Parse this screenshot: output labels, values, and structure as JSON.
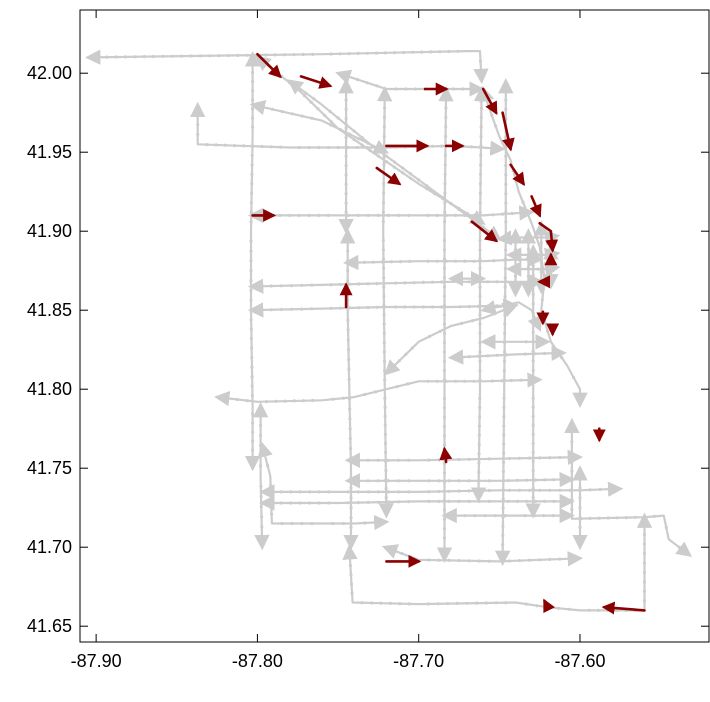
{
  "chart_data": {
    "type": "map-network",
    "title": "",
    "xlabel": "",
    "ylabel": "",
    "xlim": [
      -87.91,
      -87.52
    ],
    "ylim": [
      41.64,
      42.04
    ],
    "grid": false,
    "x_ticks": [
      {
        "value": -87.9,
        "label": "-87.90"
      },
      {
        "value": -87.8,
        "label": "-87.80"
      },
      {
        "value": -87.7,
        "label": "-87.70"
      },
      {
        "value": -87.6,
        "label": "-87.60"
      }
    ],
    "y_ticks": [
      {
        "value": 42.0,
        "label": "42.00"
      },
      {
        "value": 41.95,
        "label": "41.95"
      },
      {
        "value": 41.9,
        "label": "41.90"
      },
      {
        "value": 41.85,
        "label": "41.85"
      },
      {
        "value": 41.8,
        "label": "41.80"
      },
      {
        "value": 41.75,
        "label": "41.75"
      },
      {
        "value": 41.7,
        "label": "41.70"
      },
      {
        "value": 41.65,
        "label": "41.65"
      }
    ],
    "colors": {
      "network": "#cccccc",
      "highlight": "#8b0000",
      "axes": "#000000"
    },
    "network_lines": [
      [
        [
          -87.905,
          42.01
        ],
        [
          -87.76,
          42.012
        ],
        [
          -87.67,
          42.014
        ],
        [
          -87.662,
          42.014
        ],
        [
          -87.661,
          41.995
        ]
      ],
      [
        [
          -87.803,
          42.012
        ],
        [
          -87.803,
          41.96
        ],
        [
          -87.804,
          41.9
        ],
        [
          -87.804,
          41.85
        ],
        [
          -87.803,
          41.79
        ],
        [
          -87.803,
          41.75
        ]
      ],
      [
        [
          -87.798,
          41.79
        ],
        [
          -87.798,
          41.745
        ],
        [
          -87.797,
          41.7
        ]
      ],
      [
        [
          -87.797,
          41.765
        ],
        [
          -87.792,
          41.745
        ],
        [
          -87.791,
          41.715
        ],
        [
          -87.76,
          41.715
        ],
        [
          -87.74,
          41.715
        ],
        [
          -87.72,
          41.716
        ]
      ],
      [
        [
          -87.744,
          41.9
        ],
        [
          -87.744,
          41.85
        ],
        [
          -87.743,
          41.8
        ],
        [
          -87.742,
          41.75
        ],
        [
          -87.742,
          41.7
        ]
      ],
      [
        [
          -87.745,
          41.995
        ],
        [
          -87.745,
          41.9
        ]
      ],
      [
        [
          -87.743,
          41.7
        ],
        [
          -87.741,
          41.665
        ],
        [
          -87.7,
          41.664
        ],
        [
          -87.64,
          41.665
        ],
        [
          -87.62,
          41.662
        ],
        [
          -87.6,
          41.66
        ],
        [
          -87.56,
          41.66
        ],
        [
          -87.56,
          41.72
        ]
      ],
      [
        [
          -87.721,
          41.99
        ],
        [
          -87.722,
          41.9
        ],
        [
          -87.721,
          41.8
        ],
        [
          -87.72,
          41.72
        ]
      ],
      [
        [
          -87.721,
          41.7
        ],
        [
          -87.7,
          41.692
        ],
        [
          -87.65,
          41.691
        ],
        [
          -87.6,
          41.693
        ]
      ],
      [
        [
          -87.683,
          41.99
        ],
        [
          -87.684,
          41.9
        ],
        [
          -87.684,
          41.8
        ],
        [
          -87.684,
          41.7
        ],
        [
          -87.684,
          41.692
        ]
      ],
      [
        [
          -87.661,
          41.99
        ],
        [
          -87.662,
          41.9
        ],
        [
          -87.662,
          41.8
        ],
        [
          -87.663,
          41.73
        ]
      ],
      [
        [
          -87.646,
          41.995
        ],
        [
          -87.646,
          41.9
        ],
        [
          -87.647,
          41.8
        ],
        [
          -87.648,
          41.69
        ]
      ],
      [
        [
          -87.629,
          41.89
        ],
        [
          -87.629,
          41.8
        ],
        [
          -87.629,
          41.72
        ]
      ],
      [
        [
          -87.6,
          41.75
        ],
        [
          -87.6,
          41.7
        ]
      ],
      [
        [
          -87.605,
          41.78
        ],
        [
          -87.605,
          41.76
        ],
        [
          -87.605,
          41.718
        ],
        [
          -87.56,
          41.719
        ],
        [
          -87.548,
          41.72
        ],
        [
          -87.545,
          41.705
        ],
        [
          -87.532,
          41.695
        ]
      ],
      [
        [
          -87.66,
          41.99
        ],
        [
          -87.657,
          41.98
        ],
        [
          -87.65,
          41.96
        ],
        [
          -87.643,
          41.945
        ],
        [
          -87.638,
          41.925
        ],
        [
          -87.63,
          41.905
        ],
        [
          -87.625,
          41.89
        ],
        [
          -87.622,
          41.87
        ],
        [
          -87.624,
          41.85
        ],
        [
          -87.618,
          41.83
        ],
        [
          -87.608,
          41.815
        ],
        [
          -87.6,
          41.8
        ],
        [
          -87.6,
          41.79
        ]
      ],
      [
        [
          -87.8,
          42.01
        ],
        [
          -87.775,
          41.99
        ],
        [
          -87.75,
          41.965
        ],
        [
          -87.7,
          41.93
        ],
        [
          -87.66,
          41.905
        ]
      ],
      [
        [
          -87.78,
          41.995
        ],
        [
          -87.76,
          41.98
        ],
        [
          -87.73,
          41.955
        ],
        [
          -87.69,
          41.925
        ],
        [
          -87.65,
          41.895
        ]
      ],
      [
        [
          -87.75,
          42.0
        ],
        [
          -87.72,
          41.99
        ],
        [
          -87.69,
          41.99
        ],
        [
          -87.661,
          41.99
        ]
      ],
      [
        [
          -87.837,
          41.98
        ],
        [
          -87.837,
          41.955
        ],
        [
          -87.78,
          41.953
        ],
        [
          -87.72,
          41.953
        ],
        [
          -87.68,
          41.954
        ],
        [
          -87.661,
          41.953
        ],
        [
          -87.648,
          41.952
        ]
      ],
      [
        [
          -87.803,
          41.98
        ],
        [
          -87.76,
          41.97
        ],
        [
          -87.72,
          41.95
        ]
      ],
      [
        [
          -87.804,
          41.91
        ],
        [
          -87.75,
          41.91
        ],
        [
          -87.7,
          41.91
        ],
        [
          -87.66,
          41.91
        ],
        [
          -87.63,
          41.912
        ]
      ],
      [
        [
          -87.745,
          41.88
        ],
        [
          -87.7,
          41.881
        ],
        [
          -87.66,
          41.881
        ],
        [
          -87.64,
          41.882
        ],
        [
          -87.625,
          41.882
        ]
      ],
      [
        [
          -87.804,
          41.865
        ],
        [
          -87.76,
          41.866
        ],
        [
          -87.72,
          41.867
        ],
        [
          -87.68,
          41.868
        ],
        [
          -87.64,
          41.868
        ],
        [
          -87.624,
          41.868
        ]
      ],
      [
        [
          -87.804,
          41.85
        ],
        [
          -87.76,
          41.851
        ],
        [
          -87.72,
          41.852
        ],
        [
          -87.68,
          41.852
        ],
        [
          -87.64,
          41.853
        ]
      ],
      [
        [
          -87.66,
          41.85
        ],
        [
          -87.638,
          41.855
        ],
        [
          -87.63,
          41.85
        ],
        [
          -87.625,
          41.838
        ]
      ],
      [
        [
          -87.72,
          41.81
        ],
        [
          -87.7,
          41.83
        ],
        [
          -87.68,
          41.84
        ],
        [
          -87.66,
          41.845
        ],
        [
          -87.64,
          41.853
        ]
      ],
      [
        [
          -87.66,
          41.83
        ],
        [
          -87.64,
          41.83
        ],
        [
          -87.62,
          41.83
        ]
      ],
      [
        [
          -87.68,
          41.82
        ],
        [
          -87.64,
          41.822
        ],
        [
          -87.61,
          41.823
        ]
      ],
      [
        [
          -87.825,
          41.795
        ],
        [
          -87.8,
          41.792
        ],
        [
          -87.76,
          41.793
        ],
        [
          -87.74,
          41.795
        ],
        [
          -87.72,
          41.8
        ],
        [
          -87.7,
          41.805
        ],
        [
          -87.66,
          41.805
        ],
        [
          -87.625,
          41.806
        ]
      ],
      [
        [
          -87.744,
          41.755
        ],
        [
          -87.7,
          41.755
        ],
        [
          -87.65,
          41.756
        ],
        [
          -87.6,
          41.757
        ]
      ],
      [
        [
          -87.744,
          41.742
        ],
        [
          -87.7,
          41.742
        ],
        [
          -87.65,
          41.742
        ],
        [
          -87.605,
          41.743
        ]
      ],
      [
        [
          -87.797,
          41.735
        ],
        [
          -87.75,
          41.735
        ],
        [
          -87.7,
          41.735
        ],
        [
          -87.65,
          41.736
        ],
        [
          -87.6,
          41.736
        ],
        [
          -87.575,
          41.737
        ]
      ],
      [
        [
          -87.797,
          41.728
        ],
        [
          -87.75,
          41.728
        ],
        [
          -87.7,
          41.729
        ],
        [
          -87.65,
          41.729
        ],
        [
          -87.605,
          41.729
        ]
      ],
      [
        [
          -87.684,
          41.72
        ],
        [
          -87.64,
          41.72
        ],
        [
          -87.605,
          41.72
        ]
      ],
      [
        [
          -87.68,
          41.87
        ],
        [
          -87.66,
          41.87
        ]
      ],
      [
        [
          -87.65,
          41.895
        ],
        [
          -87.64,
          41.896
        ],
        [
          -87.62,
          41.896
        ],
        [
          -87.614,
          41.897
        ]
      ],
      [
        [
          -87.644,
          41.885
        ],
        [
          -87.62,
          41.885
        ],
        [
          -87.614,
          41.886
        ]
      ],
      [
        [
          -87.644,
          41.876
        ],
        [
          -87.62,
          41.876
        ],
        [
          -87.614,
          41.877
        ]
      ],
      [
        [
          -87.64,
          41.9
        ],
        [
          -87.64,
          41.86
        ]
      ],
      [
        [
          -87.632,
          41.9
        ],
        [
          -87.632,
          41.86
        ]
      ],
      [
        [
          -87.624,
          41.905
        ],
        [
          -87.624,
          41.862
        ]
      ],
      [
        [
          -87.618,
          41.89
        ],
        [
          -87.618,
          41.865
        ]
      ]
    ],
    "highlight_arrows": [
      [
        [
          -87.8,
          42.012
        ],
        [
          -87.786,
          41.998
        ]
      ],
      [
        [
          -87.773,
          41.998
        ],
        [
          -87.755,
          41.992
        ]
      ],
      [
        [
          -87.696,
          41.99
        ],
        [
          -87.683,
          41.99
        ]
      ],
      [
        [
          -87.72,
          41.954
        ],
        [
          -87.695,
          41.954
        ]
      ],
      [
        [
          -87.683,
          41.954
        ],
        [
          -87.673,
          41.954
        ]
      ],
      [
        [
          -87.726,
          41.94
        ],
        [
          -87.712,
          41.93
        ]
      ],
      [
        [
          -87.803,
          41.91
        ],
        [
          -87.79,
          41.91
        ]
      ],
      [
        [
          -87.667,
          41.906
        ],
        [
          -87.652,
          41.894
        ]
      ],
      [
        [
          -87.745,
          41.852
        ],
        [
          -87.745,
          41.866
        ]
      ],
      [
        [
          -87.683,
          41.754
        ],
        [
          -87.684,
          41.762
        ]
      ],
      [
        [
          -87.72,
          41.691
        ],
        [
          -87.7,
          41.691
        ]
      ],
      [
        [
          -87.56,
          41.66
        ],
        [
          -87.585,
          41.662
        ]
      ],
      [
        [
          -87.62,
          41.662
        ],
        [
          -87.622,
          41.666
        ]
      ],
      [
        [
          -87.588,
          41.775
        ],
        [
          -87.588,
          41.768
        ]
      ],
      [
        [
          -87.623,
          41.849
        ],
        [
          -87.623,
          41.842
        ]
      ],
      [
        [
          -87.617,
          41.84
        ],
        [
          -87.617,
          41.835
        ]
      ],
      [
        [
          -87.62,
          41.868
        ],
        [
          -87.625,
          41.868
        ]
      ],
      [
        [
          -87.618,
          41.88
        ],
        [
          -87.618,
          41.885
        ]
      ],
      [
        [
          -87.648,
          41.975
        ],
        [
          -87.643,
          41.952
        ]
      ],
      [
        [
          -87.643,
          41.942
        ],
        [
          -87.635,
          41.93
        ]
      ],
      [
        [
          -87.63,
          41.922
        ],
        [
          -87.625,
          41.91
        ]
      ],
      [
        [
          -87.625,
          41.905
        ],
        [
          -87.618,
          41.9
        ],
        [
          -87.617,
          41.888
        ]
      ],
      [
        [
          -87.66,
          41.99
        ],
        [
          -87.652,
          41.975
        ]
      ]
    ]
  }
}
